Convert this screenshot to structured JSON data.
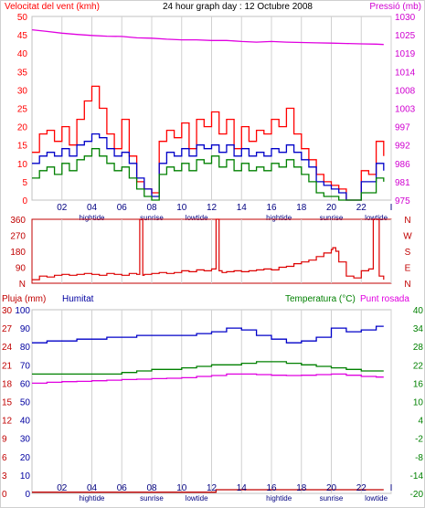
{
  "chart_data": [
    {
      "type": "line",
      "title": "24 hour graph day : 12 Octubre 2008",
      "left_axis_title": "Velocitat del vent (kmh)",
      "right_axis_title": "Pressió (mb)",
      "x_ticks": [
        "02",
        "04",
        "06",
        "08",
        "10",
        "12",
        "14",
        "16",
        "18",
        "20",
        "22",
        "I"
      ],
      "event_labels": [
        {
          "text": "hightide",
          "hour": 4.0
        },
        {
          "text": "sunrise",
          "hour": 8.0
        },
        {
          "text": "lowtide",
          "hour": 11.0
        },
        {
          "text": "hightide",
          "hour": 16.5
        },
        {
          "text": "sunrise",
          "hour": 20.0
        },
        {
          "text": "lowtide",
          "hour": 23.0
        }
      ],
      "left_axis": {
        "ticks": [
          "0",
          "5",
          "10",
          "15",
          "20",
          "25",
          "30",
          "35",
          "40",
          "45",
          "50"
        ],
        "min": 0,
        "max": 50
      },
      "right_axis": {
        "ticks": [
          "975",
          "981",
          "986",
          "992",
          "997",
          "1003",
          "1008",
          "1014",
          "1019",
          "1025",
          "1030"
        ],
        "min": 975,
        "max": 1030
      },
      "colors": {
        "gust": "#ff0000",
        "avg": "#0000c8",
        "low": "#008000",
        "pressure": "#e000e0",
        "title_left": "#ff0000",
        "title_right": "#d000d0"
      },
      "series": [
        {
          "color": "#ff0000",
          "axis": "left",
          "x": [
            0,
            0.5,
            1,
            1.5,
            2,
            2.5,
            3,
            3.5,
            4,
            4.5,
            5,
            5.5,
            6,
            6.5,
            7,
            7.5,
            8,
            8.5,
            9,
            9.5,
            10,
            10.5,
            11,
            11.5,
            12,
            12.5,
            13,
            13.5,
            14,
            14.5,
            15,
            15.5,
            16,
            16.5,
            17,
            17.5,
            18,
            18.5,
            19,
            19.5,
            20,
            20.5,
            21,
            21.5,
            22,
            22.5,
            23,
            23.5
          ],
          "y": [
            13,
            18,
            19,
            16,
            20,
            15,
            22,
            27,
            31,
            25,
            18,
            14,
            22,
            12,
            5,
            3,
            2,
            16,
            19,
            17,
            21,
            14,
            22,
            20,
            24,
            18,
            22,
            14,
            20,
            16,
            19,
            18,
            22,
            20,
            25,
            18,
            14,
            11,
            7,
            5,
            4,
            3,
            0,
            0,
            8,
            7,
            16,
            12
          ]
        },
        {
          "color": "#0000c8",
          "axis": "left",
          "x": [
            0,
            0.5,
            1,
            1.5,
            2,
            2.5,
            3,
            3.5,
            4,
            4.5,
            5,
            5.5,
            6,
            6.5,
            7,
            7.5,
            8,
            8.5,
            9,
            9.5,
            10,
            10.5,
            11,
            11.5,
            12,
            12.5,
            13,
            13.5,
            14,
            14.5,
            15,
            15.5,
            16,
            16.5,
            17,
            17.5,
            18,
            18.5,
            19,
            19.5,
            20,
            20.5,
            21,
            21.5,
            22,
            22.5,
            23,
            23.5
          ],
          "y": [
            10,
            12,
            13,
            12,
            14,
            12,
            15,
            16,
            18,
            17,
            14,
            12,
            13,
            10,
            6,
            3,
            1,
            10,
            13,
            12,
            14,
            12,
            15,
            14,
            15,
            13,
            15,
            12,
            14,
            12,
            13,
            12,
            14,
            13,
            15,
            13,
            11,
            9,
            5,
            4,
            3,
            2,
            0,
            0,
            5,
            5,
            10,
            8
          ]
        },
        {
          "color": "#008000",
          "axis": "left",
          "x": [
            0,
            0.5,
            1,
            1.5,
            2,
            2.5,
            3,
            3.5,
            4,
            4.5,
            5,
            5.5,
            6,
            6.5,
            7,
            7.5,
            8,
            8.5,
            9,
            9.5,
            10,
            10.5,
            11,
            11.5,
            12,
            12.5,
            13,
            13.5,
            14,
            14.5,
            15,
            15.5,
            16,
            16.5,
            17,
            17.5,
            18,
            18.5,
            19,
            19.5,
            20,
            20.5,
            21,
            21.5,
            22,
            22.5,
            23,
            23.5
          ],
          "y": [
            6,
            8,
            9,
            7,
            10,
            8,
            11,
            12,
            14,
            12,
            10,
            8,
            9,
            6,
            3,
            1,
            0,
            7,
            9,
            8,
            10,
            8,
            11,
            10,
            12,
            9,
            11,
            8,
            10,
            8,
            9,
            8,
            10,
            9,
            11,
            9,
            7,
            5,
            2,
            1,
            1,
            0,
            0,
            0,
            2,
            2,
            6,
            5
          ]
        },
        {
          "color": "#e000e0",
          "axis": "right",
          "x": [
            0,
            1,
            2,
            3,
            4,
            5,
            6,
            7,
            8,
            9,
            10,
            11,
            12,
            13,
            14,
            15,
            16,
            17,
            18,
            19,
            20,
            21,
            22,
            23,
            23.5
          ],
          "y": [
            1026,
            1025.5,
            1025,
            1024.6,
            1024.3,
            1024.1,
            1024,
            1023.6,
            1023.5,
            1023.2,
            1023,
            1023,
            1022.8,
            1022.8,
            1022.5,
            1022.3,
            1022.5,
            1022.3,
            1022.2,
            1022.1,
            1022,
            1021.9,
            1021.8,
            1021.7,
            1021.6
          ]
        }
      ]
    },
    {
      "type": "line",
      "left_axis": {
        "ticks": [
          "N",
          "90",
          "180",
          "270",
          "360"
        ],
        "min": 0,
        "max": 360
      },
      "right_axis_labels": [
        "N",
        "W",
        "S",
        "E",
        "N"
      ],
      "x_ticks": [
        "02",
        "04",
        "06",
        "08",
        "10",
        "12",
        "14",
        "16",
        "18",
        "20",
        "22",
        "I"
      ],
      "colors": {
        "direction": "#dd0000",
        "frame": "#c00000"
      },
      "series": [
        {
          "color": "#dd0000",
          "x": [
            0,
            0.5,
            1,
            1.5,
            2,
            2.5,
            3,
            3.5,
            4,
            4.5,
            5,
            5.5,
            6,
            6.5,
            7,
            7.2,
            7.3,
            7.4,
            7.5,
            8,
            8.5,
            9,
            9.5,
            10,
            10.5,
            11,
            11.5,
            12,
            12.3,
            12.5,
            12.7,
            13,
            13.5,
            14,
            14.5,
            15,
            15.5,
            16,
            16.5,
            17,
            17.5,
            18,
            18.5,
            19,
            19.5,
            20,
            20.1,
            20.3,
            20.5,
            21,
            21.5,
            22,
            22.5,
            22.8,
            23,
            23.2,
            23.5
          ],
          "y": [
            20,
            40,
            35,
            45,
            50,
            45,
            50,
            55,
            50,
            45,
            55,
            50,
            45,
            55,
            50,
            360,
            360,
            45,
            50,
            55,
            60,
            55,
            60,
            70,
            65,
            75,
            70,
            80,
            360,
            70,
            60,
            65,
            70,
            65,
            70,
            75,
            80,
            75,
            90,
            95,
            110,
            120,
            130,
            150,
            170,
            190,
            200,
            180,
            120,
            40,
            30,
            70,
            80,
            360,
            360,
            40,
            20
          ]
        }
      ]
    },
    {
      "type": "line",
      "left_axis_titles": [
        "Pluja (mm)",
        "Humitat"
      ],
      "right_axis_titles": [
        "Temperatura (°C)",
        "Punt rosada"
      ],
      "rain_axis": {
        "ticks": [
          "0",
          "3",
          "6",
          "9",
          "12",
          "15",
          "18",
          "21",
          "24",
          "27",
          "30"
        ],
        "min": 0,
        "max": 30
      },
      "humidity_axis": {
        "ticks": [
          "0",
          "10",
          "20",
          "30",
          "40",
          "50",
          "60",
          "70",
          "80",
          "90",
          "100"
        ],
        "min": 0,
        "max": 100
      },
      "temperature_axis": {
        "ticks": [
          "-20",
          "-14",
          "-8",
          "-2",
          "4",
          "10",
          "16",
          "22",
          "28",
          "34",
          "40"
        ],
        "min": -20,
        "max": 40
      },
      "x_ticks": [
        "02",
        "04",
        "06",
        "08",
        "10",
        "12",
        "14",
        "16",
        "18",
        "20",
        "22",
        "I"
      ],
      "event_labels": [
        {
          "text": "hightide",
          "hour": 4.0
        },
        {
          "text": "sunrise",
          "hour": 8.0
        },
        {
          "text": "lowtide",
          "hour": 11.0
        },
        {
          "text": "hightide",
          "hour": 16.5
        },
        {
          "text": "sunrise",
          "hour": 20.0
        },
        {
          "text": "lowtide",
          "hour": 23.0
        }
      ],
      "colors": {
        "rain": "#c00000",
        "humidity": "#0000c8",
        "temperature": "#008000",
        "dewpoint": "#e000e0",
        "title_rain": "#c00000",
        "title_humidity": "#0000a0",
        "title_temperature": "#008000",
        "title_dewpoint": "#e000e0"
      },
      "series": [
        {
          "color": "#c00000",
          "axis": "rain",
          "x": [
            0,
            12.2,
            12.3,
            23.5
          ],
          "y": [
            0.2,
            0.2,
            0.6,
            0.6
          ]
        },
        {
          "color": "#0000c8",
          "axis": "humidity",
          "x": [
            0,
            1,
            2,
            3,
            4,
            5,
            6,
            7,
            8,
            9,
            10,
            11,
            12,
            13,
            14,
            15,
            16,
            17,
            18,
            19,
            20,
            21,
            22,
            23,
            23.5
          ],
          "y": [
            82,
            83,
            83,
            84,
            84,
            85,
            85,
            86,
            86,
            86,
            86,
            87,
            88,
            90,
            89,
            86,
            84,
            82,
            83,
            85,
            90,
            88,
            89,
            91,
            91
          ]
        },
        {
          "color": "#008000",
          "axis": "temperature",
          "x": [
            0,
            1,
            2,
            3,
            4,
            5,
            6,
            7,
            8,
            9,
            10,
            11,
            12,
            13,
            14,
            15,
            16,
            17,
            18,
            19,
            20,
            21,
            22,
            23,
            23.5
          ],
          "y": [
            19,
            19,
            19,
            19,
            19,
            19,
            19.5,
            20,
            20.5,
            20.5,
            21,
            21.5,
            22,
            22,
            22.5,
            23,
            23,
            22.5,
            22,
            21.5,
            21,
            20.5,
            20,
            20,
            20
          ]
        },
        {
          "color": "#e000e0",
          "axis": "temperature",
          "x": [
            0,
            1,
            2,
            3,
            4,
            5,
            6,
            7,
            8,
            9,
            10,
            11,
            12,
            13,
            14,
            15,
            16,
            17,
            18,
            19,
            20,
            21,
            22,
            23,
            23.5
          ],
          "y": [
            16,
            16.3,
            16.5,
            16.6,
            16.8,
            17,
            17.2,
            17.3,
            17.5,
            17.6,
            17.8,
            18.2,
            18.5,
            19,
            19,
            18.8,
            18.6,
            18.5,
            18.6,
            18.8,
            19,
            18.6,
            18.2,
            18,
            18
          ]
        }
      ]
    }
  ]
}
